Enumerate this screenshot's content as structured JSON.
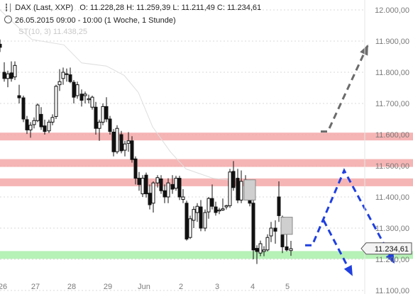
{
  "header": {
    "symbol_line": "DAX (Last, XXP)",
    "ohlc": "O: 11.228,28  H: 11.259,39  L: 11.211,49  C: 11.234,61",
    "period": "26.05.2015 09:00 - 10:00 (1 Woche, 1 Stunde)",
    "indicator": "ST(10, 3)  11.438,25"
  },
  "chart_data": {
    "type": "candlestick",
    "ylim": [
      11100,
      12000
    ],
    "y_ticks": [
      {
        "value": 12000,
        "label": "12.000,00"
      },
      {
        "value": 11900,
        "label": "11.900,00"
      },
      {
        "value": 11800,
        "label": "11.800,00"
      },
      {
        "value": 11700,
        "label": "11.700,00"
      },
      {
        "value": 11600,
        "label": "11.600,00"
      },
      {
        "value": 11500,
        "label": "11.500,00"
      },
      {
        "value": 11400,
        "label": "11.400,00"
      },
      {
        "value": 11300,
        "label": "11.300,00"
      },
      {
        "value": 11200,
        "label": "11.200,00"
      },
      {
        "value": 11100,
        "label": "11.100,00"
      }
    ],
    "x_ticks": [
      "26",
      "27",
      "28",
      "29",
      "Jun",
      "2",
      "3",
      "4",
      "5"
    ],
    "last_price": 11234.61,
    "last_price_label": "11.234,61",
    "resistance_zones": [
      11595,
      11510,
      11448
    ],
    "support_zone": 11215,
    "supertrend": [
      [
        0,
        12000
      ],
      [
        30,
        11935
      ],
      [
        45,
        11905
      ],
      [
        90,
        11888
      ],
      [
        115,
        11830
      ],
      [
        150,
        11820
      ],
      [
        175,
        11790
      ],
      [
        195,
        11735
      ],
      [
        215,
        11625
      ],
      [
        240,
        11545
      ],
      [
        262,
        11490
      ],
      [
        300,
        11460
      ],
      [
        340,
        11450
      ],
      [
        352,
        11438
      ]
    ],
    "candles": [
      [
        0,
        11890,
        11905,
        11865,
        11880
      ],
      [
        6,
        11800,
        11832,
        11770,
        11780
      ],
      [
        11,
        11780,
        11805,
        11752,
        11795
      ],
      [
        16,
        11798,
        11835,
        11770,
        11780
      ],
      [
        21,
        11785,
        11835,
        11775,
        11822
      ],
      [
        27,
        11725,
        11760,
        11700,
        11718
      ],
      [
        33,
        11718,
        11725,
        11640,
        11650
      ],
      [
        38,
        11648,
        11660,
        11602,
        11615
      ],
      [
        43,
        11615,
        11640,
        11590,
        11630
      ],
      [
        48,
        11632,
        11655,
        11620,
        11645
      ],
      [
        53,
        11645,
        11700,
        11640,
        11695
      ],
      [
        58,
        11665,
        11688,
        11615,
        11625
      ],
      [
        63,
        11628,
        11648,
        11600,
        11610
      ],
      [
        69,
        11612,
        11648,
        11605,
        11640
      ],
      [
        74,
        11640,
        11665,
        11630,
        11655
      ],
      [
        79,
        11658,
        11760,
        11650,
        11755
      ],
      [
        84,
        11760,
        11810,
        11740,
        11770
      ],
      [
        89,
        11780,
        11815,
        11760,
        11800
      ],
      [
        94,
        11795,
        11812,
        11770,
        11795
      ],
      [
        99,
        11792,
        11815,
        11765,
        11770
      ],
      [
        104,
        11768,
        11775,
        11700,
        11720
      ],
      [
        109,
        11725,
        11770,
        11715,
        11760
      ],
      [
        115,
        11730,
        11745,
        11690,
        11710
      ],
      [
        120,
        11725,
        11738,
        11700,
        11730
      ],
      [
        125,
        11712,
        11728,
        11700,
        11715
      ],
      [
        130,
        11688,
        11725,
        11680,
        11720
      ],
      [
        135,
        11688,
        11705,
        11600,
        11620
      ],
      [
        140,
        11620,
        11648,
        11580,
        11640
      ],
      [
        145,
        11640,
        11700,
        11630,
        11690
      ],
      [
        150,
        11690,
        11720,
        11640,
        11650
      ],
      [
        155,
        11650,
        11660,
        11600,
        11610
      ],
      [
        160,
        11608,
        11618,
        11530,
        11545
      ],
      [
        165,
        11545,
        11630,
        11538,
        11620
      ],
      [
        171,
        11600,
        11612,
        11540,
        11548
      ],
      [
        176,
        11550,
        11580,
        11530,
        11570
      ],
      [
        181,
        11572,
        11608,
        11545,
        11580
      ],
      [
        186,
        11580,
        11595,
        11510,
        11520
      ],
      [
        191,
        11522,
        11530,
        11440,
        11460
      ],
      [
        196,
        11460,
        11480,
        11420,
        11440
      ],
      [
        201,
        11410,
        11470,
        11400,
        11460
      ],
      [
        206,
        11470,
        11478,
        11398,
        11410
      ],
      [
        211,
        11412,
        11440,
        11360,
        11375
      ],
      [
        216,
        11380,
        11450,
        11350,
        11445
      ],
      [
        222,
        11445,
        11470,
        11430,
        11462
      ],
      [
        227,
        11458,
        11470,
        11410,
        11420
      ],
      [
        232,
        11420,
        11440,
        11380,
        11400
      ],
      [
        237,
        11400,
        11460,
        11380,
        11445
      ],
      [
        243,
        11440,
        11470,
        11410,
        11425
      ],
      [
        248,
        11428,
        11468,
        11420,
        11460
      ],
      [
        253,
        11460,
        11468,
        11390,
        11400
      ],
      [
        258,
        11392,
        11425,
        11380,
        11400
      ],
      [
        263,
        11380,
        11388,
        11260,
        11265
      ],
      [
        268,
        11270,
        11340,
        11265,
        11330
      ],
      [
        273,
        11325,
        11370,
        11300,
        11360
      ],
      [
        278,
        11350,
        11380,
        11320,
        11370
      ],
      [
        283,
        11368,
        11390,
        11290,
        11300
      ],
      [
        289,
        11300,
        11360,
        11290,
        11350
      ],
      [
        294,
        11352,
        11400,
        11330,
        11395
      ],
      [
        299,
        11395,
        11440,
        11360,
        11370
      ],
      [
        304,
        11368,
        11385,
        11340,
        11350
      ],
      [
        309,
        11355,
        11365,
        11345,
        11358
      ],
      [
        314,
        11358,
        11395,
        11355,
        11362
      ],
      [
        319,
        11368,
        11375,
        11360,
        11372
      ],
      [
        324,
        11372,
        11490,
        11365,
        11480
      ],
      [
        329,
        11482,
        11515,
        11420,
        11430
      ],
      [
        335,
        11460,
        11490,
        11380,
        11390
      ],
      [
        340,
        11390,
        11485,
        11380,
        11450
      ],
      [
        346,
        11455,
        11470,
        11420,
        11440
      ],
      [
        352,
        11430,
        11440,
        11370,
        11380
      ],
      [
        357,
        11380,
        11395,
        11200,
        11230
      ],
      [
        362,
        11235,
        11245,
        11185,
        11225
      ],
      [
        367,
        11220,
        11260,
        11210,
        11250
      ],
      [
        372,
        11225,
        11242,
        11210,
        11230
      ],
      [
        377,
        11230,
        11280,
        11225,
        11270
      ],
      [
        382,
        11275,
        11320,
        11255,
        11300
      ],
      [
        388,
        11300,
        11325,
        11250,
        11290
      ],
      [
        393,
        11400,
        11450,
        11320,
        11340
      ],
      [
        398,
        11335,
        11340,
        11220,
        11240
      ],
      [
        404,
        11240,
        11280,
        11225,
        11230
      ],
      [
        410,
        11228,
        11259,
        11211,
        11234
      ]
    ],
    "scenario_arrows": [
      {
        "color": "#6b6b6b",
        "style": "dashed",
        "points": [
          [
            11610,
            452
          ],
          [
            11610,
            462
          ],
          [
            11885,
            518
          ]
        ]
      },
      {
        "color": "#1f3fe0",
        "style": "dashed",
        "points": [
          [
            11245,
            430
          ],
          [
            11245,
            440
          ],
          [
            11485,
            485
          ],
          [
            11190,
            555
          ]
        ]
      },
      {
        "color": "#1f3fe0",
        "style": "dashed",
        "points": [
          [
            11325,
            456
          ],
          [
            11150,
            496
          ]
        ]
      }
    ]
  },
  "colors": {
    "candle_fill": "#ffffff",
    "candle_stroke": "#111111",
    "resistance": "#f4a8a8",
    "support": "#aef0ae",
    "supertrend": "#dedede",
    "grid_dash": "#d8d8d8"
  }
}
